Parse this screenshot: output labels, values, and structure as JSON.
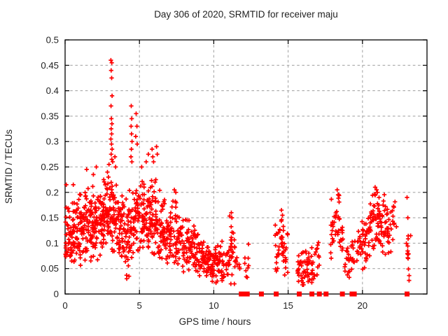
{
  "window": {
    "background": "#ffffff"
  },
  "style": {
    "marker_color": "#ff0000",
    "grid_color": "#a8a8a8",
    "frame_color": "#000000",
    "text_color": "#222222"
  },
  "chart_data": {
    "type": "scatter",
    "title": "Day 306 of 2020, SRMTID for receiver maju",
    "xlabel": "GPS time / hours",
    "ylabel": "SRMTID / TECUs",
    "xlim": [
      0,
      24.34
    ],
    "ylim": [
      0,
      0.5
    ],
    "x_ticks": [
      0,
      5,
      10,
      15,
      20
    ],
    "x_tick_labels": [
      "0",
      "5",
      "10",
      "15",
      "20"
    ],
    "y_ticks": [
      0,
      0.05,
      0.1,
      0.15,
      0.2,
      0.25,
      0.3,
      0.35,
      0.4,
      0.45,
      0.5
    ],
    "y_tick_labels": [
      "0",
      "0.05",
      "0.1",
      "0.15",
      "0.2",
      "0.25",
      "0.3",
      "0.35",
      "0.4",
      "0.45",
      "0.5"
    ],
    "grid": "dashed gray lines at all major ticks, mirrored inward ticks on all four borders",
    "legend_position": "none",
    "marker": "plus",
    "marker_color": "#ff0000",
    "zero_value_marker": "filled red square centered on the x-axis",
    "zero_marker_hours": [
      11.85,
      11.95,
      12.05,
      12.15,
      12.25,
      13.2,
      14.2,
      15.75,
      16.6,
      17.1,
      17.55,
      18.65,
      19.3,
      19.45,
      23.0
    ],
    "point_cloud": {
      "seed": 306,
      "note": "Dense scatter of ~1400 points summarized as bins; renderer draws count points per bin, uniform in hours, triangular in value around center with given half-spread.",
      "clusters_format": [
        "hour_start",
        "hour_end",
        "count",
        "value_center",
        "value_halfspread"
      ],
      "clusters": [
        [
          0.0,
          0.25,
          22,
          0.13,
          0.055
        ],
        [
          0.25,
          0.5,
          22,
          0.12,
          0.05
        ],
        [
          0.5,
          0.75,
          22,
          0.125,
          0.055
        ],
        [
          0.75,
          1.0,
          24,
          0.13,
          0.055
        ],
        [
          1.0,
          1.25,
          24,
          0.13,
          0.055
        ],
        [
          1.25,
          1.5,
          24,
          0.135,
          0.06
        ],
        [
          1.5,
          1.75,
          24,
          0.14,
          0.06
        ],
        [
          1.75,
          2.0,
          24,
          0.14,
          0.055
        ],
        [
          2.0,
          2.25,
          26,
          0.14,
          0.06
        ],
        [
          2.25,
          2.5,
          26,
          0.14,
          0.055
        ],
        [
          2.5,
          2.75,
          26,
          0.15,
          0.06
        ],
        [
          2.75,
          3.0,
          26,
          0.16,
          0.06
        ],
        [
          3.0,
          3.25,
          26,
          0.16,
          0.065
        ],
        [
          3.25,
          3.5,
          24,
          0.15,
          0.06
        ],
        [
          3.5,
          3.75,
          22,
          0.14,
          0.055
        ],
        [
          3.75,
          4.0,
          22,
          0.13,
          0.055
        ],
        [
          4.0,
          4.25,
          22,
          0.115,
          0.06
        ],
        [
          4.25,
          4.5,
          22,
          0.125,
          0.06
        ],
        [
          4.5,
          4.75,
          22,
          0.14,
          0.055
        ],
        [
          4.75,
          5.0,
          22,
          0.15,
          0.055
        ],
        [
          5.0,
          5.25,
          22,
          0.15,
          0.055
        ],
        [
          5.25,
          5.5,
          22,
          0.145,
          0.055
        ],
        [
          5.5,
          5.75,
          24,
          0.15,
          0.06
        ],
        [
          5.75,
          6.0,
          24,
          0.145,
          0.06
        ],
        [
          6.0,
          6.25,
          24,
          0.145,
          0.065
        ],
        [
          6.25,
          6.5,
          22,
          0.13,
          0.055
        ],
        [
          6.5,
          6.75,
          20,
          0.125,
          0.05
        ],
        [
          6.75,
          7.0,
          20,
          0.12,
          0.05
        ],
        [
          7.0,
          7.25,
          20,
          0.12,
          0.05
        ],
        [
          7.25,
          7.5,
          20,
          0.125,
          0.055
        ],
        [
          7.5,
          7.75,
          18,
          0.11,
          0.05
        ],
        [
          7.75,
          8.0,
          18,
          0.105,
          0.045
        ],
        [
          8.0,
          8.25,
          18,
          0.1,
          0.045
        ],
        [
          8.25,
          8.5,
          18,
          0.09,
          0.04
        ],
        [
          8.5,
          8.75,
          18,
          0.085,
          0.04
        ],
        [
          8.75,
          9.0,
          18,
          0.08,
          0.035
        ],
        [
          9.0,
          9.25,
          18,
          0.075,
          0.035
        ],
        [
          9.25,
          9.5,
          18,
          0.068,
          0.03
        ],
        [
          9.5,
          9.75,
          18,
          0.06,
          0.028
        ],
        [
          9.75,
          10.0,
          18,
          0.055,
          0.027
        ],
        [
          10.0,
          10.25,
          18,
          0.058,
          0.028
        ],
        [
          10.25,
          10.5,
          18,
          0.06,
          0.03
        ],
        [
          10.5,
          10.75,
          16,
          0.065,
          0.032
        ],
        [
          10.75,
          11.0,
          12,
          0.06,
          0.03
        ],
        [
          11.0,
          11.3,
          20,
          0.085,
          0.055
        ],
        [
          11.3,
          11.5,
          10,
          0.07,
          0.04
        ],
        [
          11.5,
          11.75,
          5,
          0.06,
          0.02
        ],
        [
          12.05,
          12.35,
          9,
          0.06,
          0.035
        ],
        [
          14.1,
          14.4,
          16,
          0.09,
          0.05
        ],
        [
          14.4,
          14.7,
          18,
          0.1,
          0.05
        ],
        [
          14.7,
          15.0,
          12,
          0.08,
          0.04
        ],
        [
          15.6,
          15.9,
          14,
          0.05,
          0.025
        ],
        [
          15.9,
          16.2,
          16,
          0.05,
          0.03
        ],
        [
          16.2,
          16.5,
          16,
          0.055,
          0.03
        ],
        [
          16.5,
          16.8,
          14,
          0.06,
          0.032
        ],
        [
          16.85,
          17.1,
          10,
          0.08,
          0.04
        ],
        [
          17.85,
          18.15,
          16,
          0.12,
          0.05
        ],
        [
          18.15,
          18.45,
          16,
          0.14,
          0.05
        ],
        [
          18.45,
          18.7,
          12,
          0.12,
          0.045
        ],
        [
          18.8,
          19.1,
          12,
          0.07,
          0.03
        ],
        [
          19.1,
          19.5,
          14,
          0.07,
          0.035
        ],
        [
          19.6,
          19.9,
          14,
          0.09,
          0.04
        ],
        [
          19.9,
          20.2,
          16,
          0.1,
          0.045
        ],
        [
          20.2,
          20.5,
          18,
          0.12,
          0.05
        ],
        [
          20.5,
          20.8,
          20,
          0.14,
          0.055
        ],
        [
          20.8,
          21.1,
          20,
          0.15,
          0.05
        ],
        [
          21.1,
          21.4,
          20,
          0.14,
          0.05
        ],
        [
          21.4,
          21.7,
          18,
          0.14,
          0.05
        ],
        [
          21.7,
          22.0,
          14,
          0.13,
          0.045
        ],
        [
          22.0,
          22.3,
          10,
          0.14,
          0.035
        ],
        [
          22.9,
          23.3,
          14,
          0.1,
          0.055
        ]
      ],
      "explicit_points_format": [
        "hour",
        "value"
      ],
      "explicit_points": [
        [
          0.08,
          0.215
        ],
        [
          0.55,
          0.215
        ],
        [
          1.45,
          0.245
        ],
        [
          1.9,
          0.235
        ],
        [
          2.1,
          0.25
        ],
        [
          2.6,
          0.225
        ],
        [
          2.85,
          0.24
        ],
        [
          2.95,
          0.255
        ],
        [
          3.08,
          0.46
        ],
        [
          3.14,
          0.455
        ],
        [
          3.1,
          0.44
        ],
        [
          3.13,
          0.425
        ],
        [
          3.16,
          0.39
        ],
        [
          3.09,
          0.37
        ],
        [
          3.11,
          0.345
        ],
        [
          3.15,
          0.335
        ],
        [
          3.1,
          0.325
        ],
        [
          3.13,
          0.315
        ],
        [
          3.08,
          0.305
        ],
        [
          3.12,
          0.295
        ],
        [
          3.16,
          0.285
        ],
        [
          3.1,
          0.275
        ],
        [
          3.14,
          0.265
        ],
        [
          3.2,
          0.26
        ],
        [
          3.35,
          0.27
        ],
        [
          3.4,
          0.25
        ],
        [
          4.45,
          0.37
        ],
        [
          4.48,
          0.345
        ],
        [
          4.44,
          0.33
        ],
        [
          4.47,
          0.315
        ],
        [
          4.5,
          0.3
        ],
        [
          4.46,
          0.285
        ],
        [
          4.43,
          0.27
        ],
        [
          4.49,
          0.26
        ],
        [
          4.78,
          0.355
        ],
        [
          4.83,
          0.33
        ],
        [
          4.75,
          0.31
        ],
        [
          4.85,
          0.295
        ],
        [
          5.15,
          0.25
        ],
        [
          5.45,
          0.26
        ],
        [
          5.6,
          0.275
        ],
        [
          5.85,
          0.285
        ],
        [
          5.9,
          0.27
        ],
        [
          5.95,
          0.26
        ],
        [
          6.15,
          0.29
        ],
        [
          6.2,
          0.275
        ],
        [
          6.1,
          0.225
        ],
        [
          6.05,
          0.22
        ],
        [
          7.35,
          0.205
        ],
        [
          7.45,
          0.2
        ],
        [
          11.18,
          0.16
        ],
        [
          11.22,
          0.15
        ],
        [
          14.55,
          0.165
        ],
        [
          14.62,
          0.155
        ],
        [
          18.3,
          0.205
        ],
        [
          18.36,
          0.195
        ],
        [
          20.85,
          0.21
        ],
        [
          20.95,
          0.205
        ],
        [
          21.0,
          0.2
        ],
        [
          23.0,
          0.19
        ],
        [
          23.05,
          0.15
        ],
        [
          4.15,
          0.03
        ],
        [
          4.3,
          0.035
        ],
        [
          9.9,
          0.025
        ],
        [
          10.15,
          0.022
        ],
        [
          11.15,
          0.02
        ],
        [
          15.7,
          0.025
        ],
        [
          16.0,
          0.022
        ]
      ]
    }
  }
}
